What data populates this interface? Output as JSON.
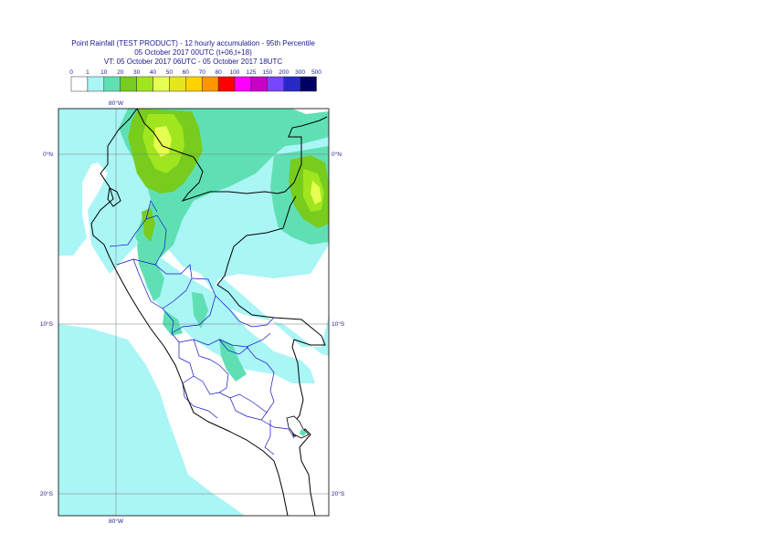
{
  "title": {
    "line1": "Point Rainfall (TEST PRODUCT) - 12 hourly accumulation - 95th Percentile",
    "line2": "05 October 2017 00UTC (t+06,t+18)",
    "line3": "VT: 05 October 2017 06UTC - 05 October 2017 18UTC"
  },
  "legend": {
    "thresholds": [
      "0",
      "1",
      "10",
      "20",
      "30",
      "40",
      "50",
      "60",
      "70",
      "80",
      "100",
      "125",
      "150",
      "200",
      "300",
      "500"
    ],
    "colors": [
      "#ffffff",
      "#aaf5f5",
      "#5fe0b4",
      "#78cc1e",
      "#a0e61e",
      "#e6ff50",
      "#e6e61e",
      "#ffd200",
      "#ff9600",
      "#ff0000",
      "#ff00ff",
      "#c800c8",
      "#7846ff",
      "#2828c8",
      "#000064"
    ]
  },
  "map": {
    "lon_labels": {
      "top": "80°W",
      "bottom": "80°W"
    },
    "lat_labels": [
      "0°N",
      "10°S",
      "20°S"
    ],
    "region": "Peru"
  }
}
